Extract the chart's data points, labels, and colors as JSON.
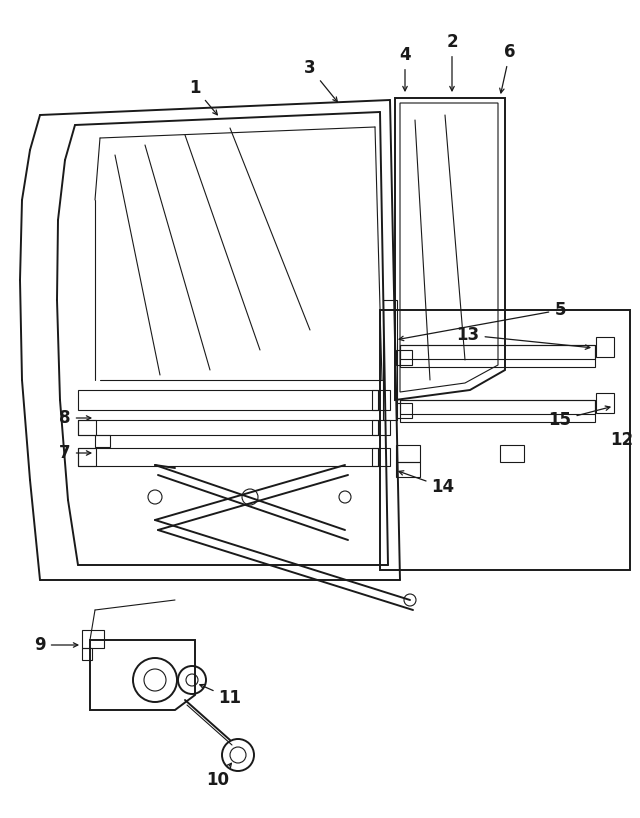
{
  "background_color": "#ffffff",
  "line_color": "#1a1a1a",
  "label_color": "#000000",
  "figsize": [
    6.4,
    8.18
  ],
  "dpi": 100
}
